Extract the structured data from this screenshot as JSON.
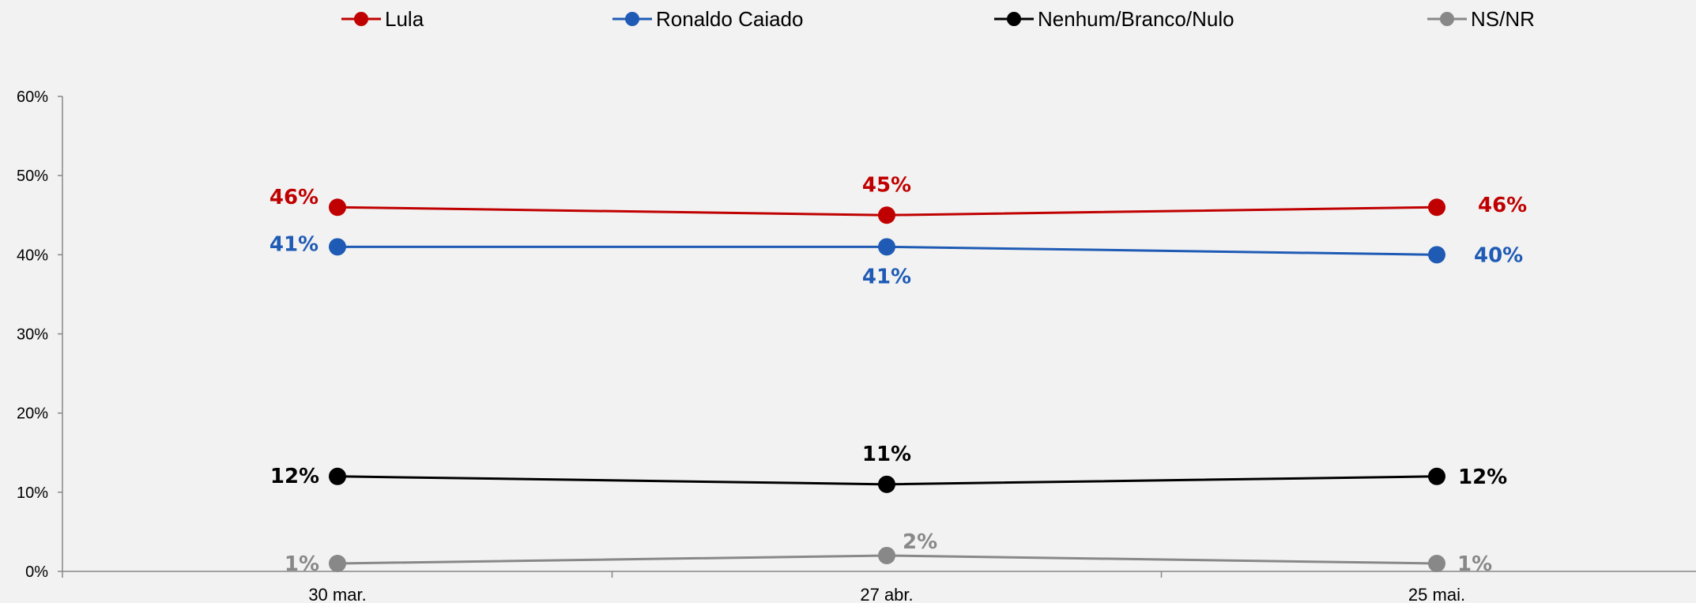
{
  "chart_data": {
    "type": "line",
    "categories": [
      "30 mar.",
      "27 abr.",
      "25 mai."
    ],
    "ylim": [
      0,
      60
    ],
    "yticks": [
      "0%",
      "10%",
      "20%",
      "30%",
      "40%",
      "50%",
      "60%"
    ],
    "grid": false,
    "legend_position": "top",
    "series": [
      {
        "name": "Lula",
        "color": "#c00000",
        "values": [
          46,
          45,
          46
        ],
        "labels": [
          "46%",
          "45%",
          "46%"
        ]
      },
      {
        "name": "Ronaldo Caiado",
        "color": "#1f5bb5",
        "values": [
          41,
          41,
          40
        ],
        "labels": [
          "41%",
          "41%",
          "40%"
        ]
      },
      {
        "name": "Nenhum/Branco/Nulo",
        "color": "#000000",
        "values": [
          12,
          11,
          12
        ],
        "labels": [
          "12%",
          "11%",
          "12%"
        ]
      },
      {
        "name": "NS/NR",
        "color": "#888888",
        "values": [
          1,
          2,
          1
        ],
        "labels": [
          "1%",
          "2%",
          "1%"
        ]
      }
    ]
  }
}
